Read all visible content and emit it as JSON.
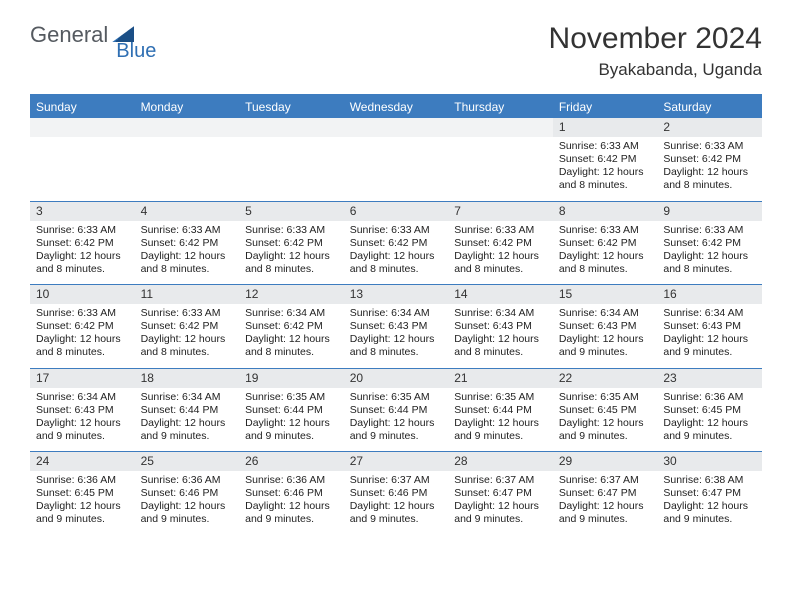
{
  "brand": {
    "part1": "General",
    "part2": "Blue"
  },
  "title": "November 2024",
  "location": "Byakabanda, Uganda",
  "colors": {
    "header_bg": "#3d7cbf",
    "daynum_bg": "#e8eaec",
    "border": "#3d7cbf",
    "text": "#222222"
  },
  "weekdays": [
    "Sunday",
    "Monday",
    "Tuesday",
    "Wednesday",
    "Thursday",
    "Friday",
    "Saturday"
  ],
  "weeks": [
    [
      {
        "day": "",
        "lines": []
      },
      {
        "day": "",
        "lines": []
      },
      {
        "day": "",
        "lines": []
      },
      {
        "day": "",
        "lines": []
      },
      {
        "day": "",
        "lines": []
      },
      {
        "day": "1",
        "lines": [
          "Sunrise: 6:33 AM",
          "Sunset: 6:42 PM",
          "Daylight: 12 hours and 8 minutes."
        ]
      },
      {
        "day": "2",
        "lines": [
          "Sunrise: 6:33 AM",
          "Sunset: 6:42 PM",
          "Daylight: 12 hours and 8 minutes."
        ]
      }
    ],
    [
      {
        "day": "3",
        "lines": [
          "Sunrise: 6:33 AM",
          "Sunset: 6:42 PM",
          "Daylight: 12 hours and 8 minutes."
        ]
      },
      {
        "day": "4",
        "lines": [
          "Sunrise: 6:33 AM",
          "Sunset: 6:42 PM",
          "Daylight: 12 hours and 8 minutes."
        ]
      },
      {
        "day": "5",
        "lines": [
          "Sunrise: 6:33 AM",
          "Sunset: 6:42 PM",
          "Daylight: 12 hours and 8 minutes."
        ]
      },
      {
        "day": "6",
        "lines": [
          "Sunrise: 6:33 AM",
          "Sunset: 6:42 PM",
          "Daylight: 12 hours and 8 minutes."
        ]
      },
      {
        "day": "7",
        "lines": [
          "Sunrise: 6:33 AM",
          "Sunset: 6:42 PM",
          "Daylight: 12 hours and 8 minutes."
        ]
      },
      {
        "day": "8",
        "lines": [
          "Sunrise: 6:33 AM",
          "Sunset: 6:42 PM",
          "Daylight: 12 hours and 8 minutes."
        ]
      },
      {
        "day": "9",
        "lines": [
          "Sunrise: 6:33 AM",
          "Sunset: 6:42 PM",
          "Daylight: 12 hours and 8 minutes."
        ]
      }
    ],
    [
      {
        "day": "10",
        "lines": [
          "Sunrise: 6:33 AM",
          "Sunset: 6:42 PM",
          "Daylight: 12 hours and 8 minutes."
        ]
      },
      {
        "day": "11",
        "lines": [
          "Sunrise: 6:33 AM",
          "Sunset: 6:42 PM",
          "Daylight: 12 hours and 8 minutes."
        ]
      },
      {
        "day": "12",
        "lines": [
          "Sunrise: 6:34 AM",
          "Sunset: 6:42 PM",
          "Daylight: 12 hours and 8 minutes."
        ]
      },
      {
        "day": "13",
        "lines": [
          "Sunrise: 6:34 AM",
          "Sunset: 6:43 PM",
          "Daylight: 12 hours and 8 minutes."
        ]
      },
      {
        "day": "14",
        "lines": [
          "Sunrise: 6:34 AM",
          "Sunset: 6:43 PM",
          "Daylight: 12 hours and 8 minutes."
        ]
      },
      {
        "day": "15",
        "lines": [
          "Sunrise: 6:34 AM",
          "Sunset: 6:43 PM",
          "Daylight: 12 hours and 9 minutes."
        ]
      },
      {
        "day": "16",
        "lines": [
          "Sunrise: 6:34 AM",
          "Sunset: 6:43 PM",
          "Daylight: 12 hours and 9 minutes."
        ]
      }
    ],
    [
      {
        "day": "17",
        "lines": [
          "Sunrise: 6:34 AM",
          "Sunset: 6:43 PM",
          "Daylight: 12 hours and 9 minutes."
        ]
      },
      {
        "day": "18",
        "lines": [
          "Sunrise: 6:34 AM",
          "Sunset: 6:44 PM",
          "Daylight: 12 hours and 9 minutes."
        ]
      },
      {
        "day": "19",
        "lines": [
          "Sunrise: 6:35 AM",
          "Sunset: 6:44 PM",
          "Daylight: 12 hours and 9 minutes."
        ]
      },
      {
        "day": "20",
        "lines": [
          "Sunrise: 6:35 AM",
          "Sunset: 6:44 PM",
          "Daylight: 12 hours and 9 minutes."
        ]
      },
      {
        "day": "21",
        "lines": [
          "Sunrise: 6:35 AM",
          "Sunset: 6:44 PM",
          "Daylight: 12 hours and 9 minutes."
        ]
      },
      {
        "day": "22",
        "lines": [
          "Sunrise: 6:35 AM",
          "Sunset: 6:45 PM",
          "Daylight: 12 hours and 9 minutes."
        ]
      },
      {
        "day": "23",
        "lines": [
          "Sunrise: 6:36 AM",
          "Sunset: 6:45 PM",
          "Daylight: 12 hours and 9 minutes."
        ]
      }
    ],
    [
      {
        "day": "24",
        "lines": [
          "Sunrise: 6:36 AM",
          "Sunset: 6:45 PM",
          "Daylight: 12 hours and 9 minutes."
        ]
      },
      {
        "day": "25",
        "lines": [
          "Sunrise: 6:36 AM",
          "Sunset: 6:46 PM",
          "Daylight: 12 hours and 9 minutes."
        ]
      },
      {
        "day": "26",
        "lines": [
          "Sunrise: 6:36 AM",
          "Sunset: 6:46 PM",
          "Daylight: 12 hours and 9 minutes."
        ]
      },
      {
        "day": "27",
        "lines": [
          "Sunrise: 6:37 AM",
          "Sunset: 6:46 PM",
          "Daylight: 12 hours and 9 minutes."
        ]
      },
      {
        "day": "28",
        "lines": [
          "Sunrise: 6:37 AM",
          "Sunset: 6:47 PM",
          "Daylight: 12 hours and 9 minutes."
        ]
      },
      {
        "day": "29",
        "lines": [
          "Sunrise: 6:37 AM",
          "Sunset: 6:47 PM",
          "Daylight: 12 hours and 9 minutes."
        ]
      },
      {
        "day": "30",
        "lines": [
          "Sunrise: 6:38 AM",
          "Sunset: 6:47 PM",
          "Daylight: 12 hours and 9 minutes."
        ]
      }
    ]
  ]
}
